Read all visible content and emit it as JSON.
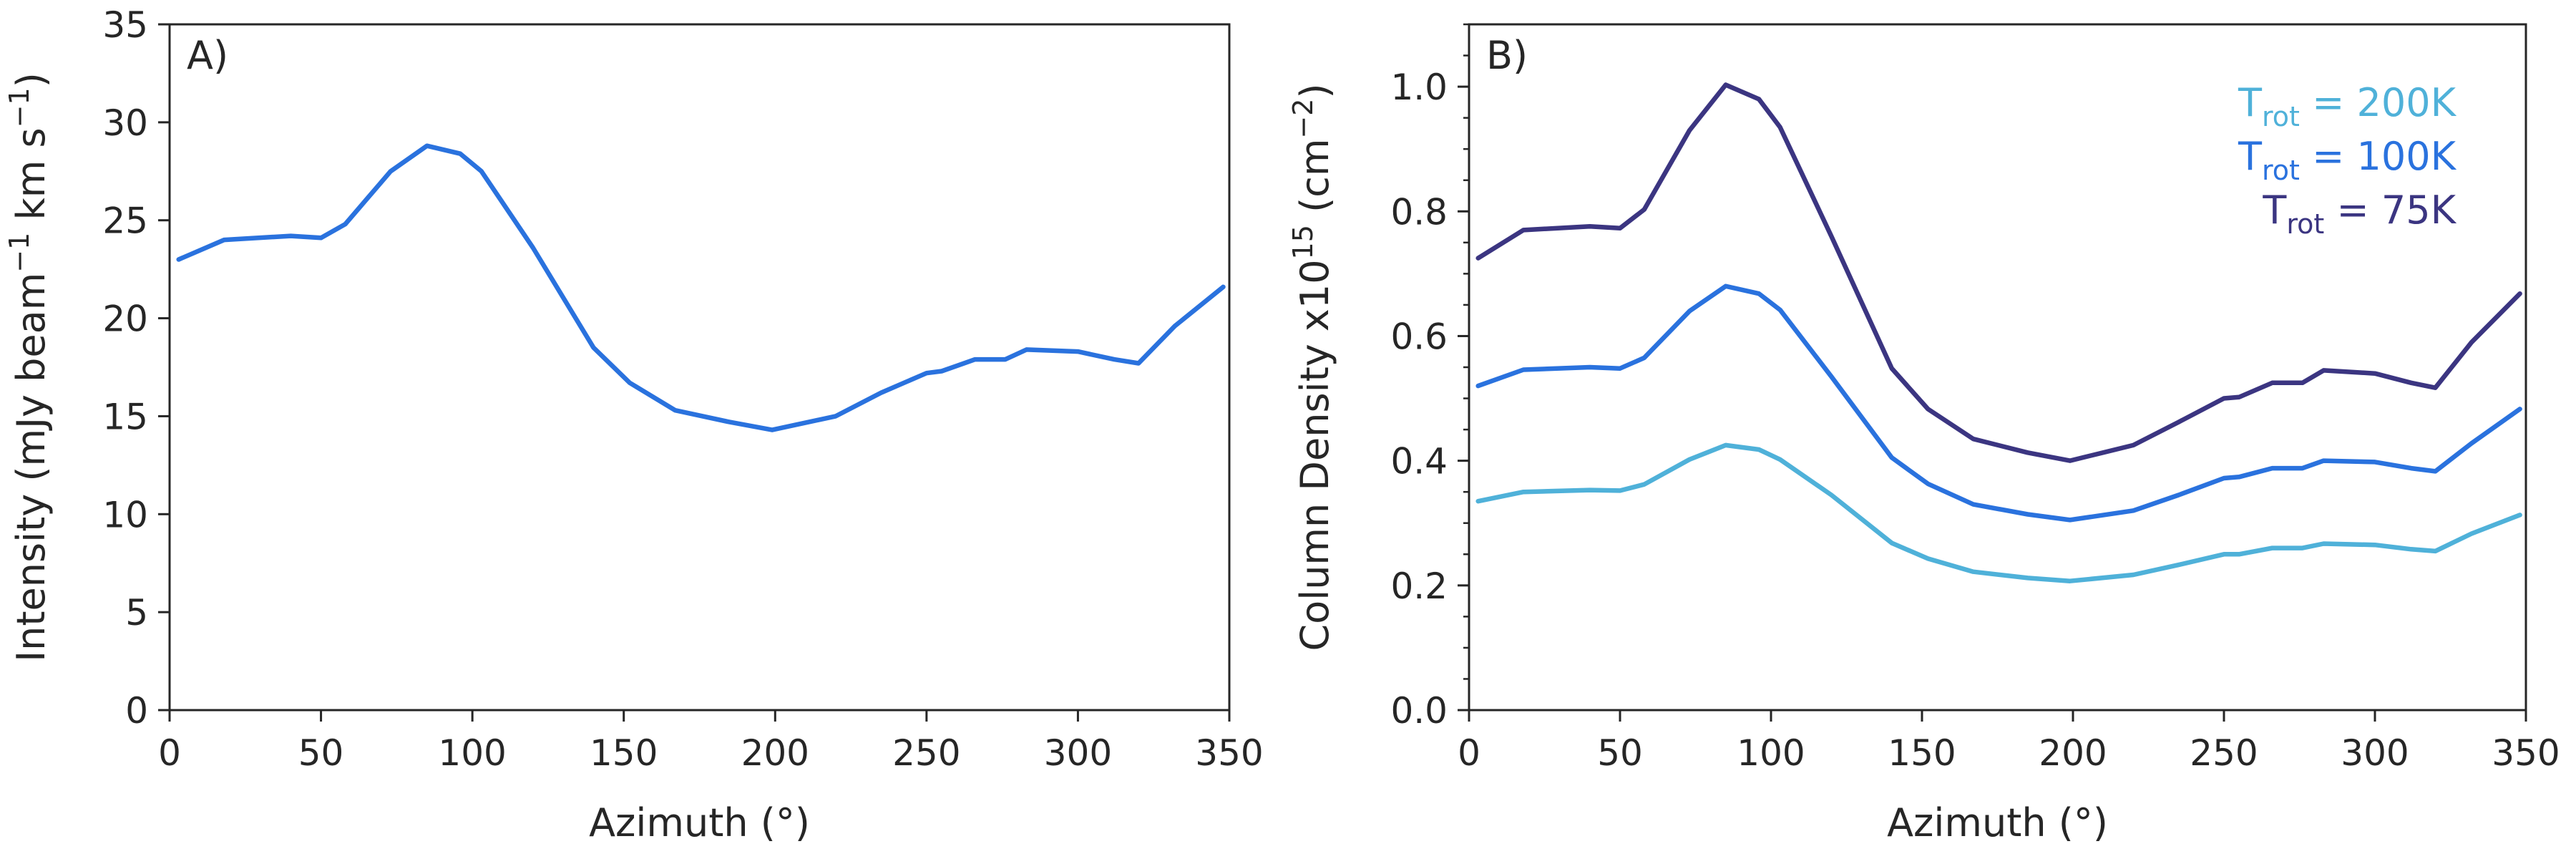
{
  "chart_data": [
    {
      "type": "line",
      "panel_label": "A)",
      "xlabel": "Azimuth (°)",
      "ylabel": {
        "pre": "Intensity (mJy beam",
        "sup1": "−1",
        "mid": " km s",
        "sup2": "−1",
        "post": ")"
      },
      "xlim": [
        0,
        350
      ],
      "ylim": [
        0,
        35
      ],
      "xticks": [
        0,
        50,
        100,
        150,
        200,
        250,
        300,
        350
      ],
      "yticks": [
        0,
        5,
        10,
        15,
        20,
        25,
        30,
        35
      ],
      "grid": false,
      "series": [
        {
          "color": "#2a72de",
          "x": [
            3,
            18,
            40,
            50,
            58,
            73,
            85,
            96,
            103,
            120,
            140,
            152,
            167,
            185,
            199,
            220,
            235,
            250,
            255,
            266,
            276,
            283,
            300,
            312,
            320,
            332,
            348
          ],
          "y": [
            23.0,
            24.0,
            24.2,
            24.1,
            24.8,
            27.5,
            28.8,
            28.4,
            27.5,
            23.6,
            18.5,
            16.7,
            15.3,
            14.7,
            14.3,
            15.0,
            16.2,
            17.2,
            17.3,
            17.9,
            17.9,
            18.4,
            18.3,
            17.9,
            17.7,
            19.6,
            21.6
          ]
        }
      ]
    },
    {
      "type": "line",
      "panel_label": "B)",
      "xlabel": "Azimuth (°)",
      "ylabel": {
        "pre": "Column Density x10",
        "sup1": "15",
        "mid": " (cm",
        "sup2": "−2",
        "post": ")"
      },
      "xlim": [
        0,
        350
      ],
      "ylim": [
        0,
        1.1
      ],
      "xticks": [
        0,
        50,
        100,
        150,
        200,
        250,
        300,
        350
      ],
      "yticks": [
        0.0,
        0.2,
        0.4,
        0.6,
        0.8,
        1.0
      ],
      "grid": false,
      "legend_position": "top-right",
      "series": [
        {
          "name": {
            "pre": "T",
            "sub": "rot",
            "post": " = 200K"
          },
          "color": "#4fb1d9",
          "x": [
            3,
            18,
            40,
            50,
            58,
            73,
            85,
            96,
            103,
            120,
            140,
            152,
            167,
            185,
            199,
            220,
            235,
            250,
            255,
            266,
            276,
            283,
            300,
            312,
            320,
            332,
            348
          ],
          "y": [
            0.335,
            0.35,
            0.353,
            0.352,
            0.362,
            0.402,
            0.425,
            0.418,
            0.402,
            0.345,
            0.268,
            0.243,
            0.222,
            0.212,
            0.207,
            0.217,
            0.233,
            0.25,
            0.25,
            0.26,
            0.26,
            0.267,
            0.265,
            0.258,
            0.255,
            0.283,
            0.313
          ]
        },
        {
          "name": {
            "pre": "T",
            "sub": "rot",
            "post": " = 100K"
          },
          "color": "#2a72de",
          "x": [
            3,
            18,
            40,
            50,
            58,
            73,
            85,
            96,
            103,
            120,
            140,
            152,
            167,
            185,
            199,
            220,
            235,
            250,
            255,
            266,
            276,
            283,
            300,
            312,
            320,
            332,
            348
          ],
          "y": [
            0.52,
            0.546,
            0.55,
            0.548,
            0.565,
            0.64,
            0.68,
            0.668,
            0.642,
            0.535,
            0.405,
            0.363,
            0.33,
            0.314,
            0.305,
            0.32,
            0.345,
            0.372,
            0.374,
            0.388,
            0.388,
            0.4,
            0.398,
            0.388,
            0.383,
            0.428,
            0.483
          ]
        },
        {
          "name": {
            "pre": "T",
            "sub": "rot",
            "post": " = 75K"
          },
          "color": "#3b3581",
          "x": [
            3,
            18,
            40,
            50,
            58,
            73,
            85,
            96,
            103,
            120,
            140,
            152,
            167,
            185,
            199,
            220,
            235,
            250,
            255,
            266,
            276,
            283,
            300,
            312,
            320,
            332,
            348
          ],
          "y": [
            0.725,
            0.77,
            0.776,
            0.773,
            0.803,
            0.93,
            1.003,
            0.98,
            0.935,
            0.76,
            0.548,
            0.483,
            0.435,
            0.413,
            0.4,
            0.425,
            0.462,
            0.5,
            0.502,
            0.525,
            0.525,
            0.545,
            0.54,
            0.525,
            0.517,
            0.59,
            0.668
          ]
        }
      ]
    }
  ]
}
